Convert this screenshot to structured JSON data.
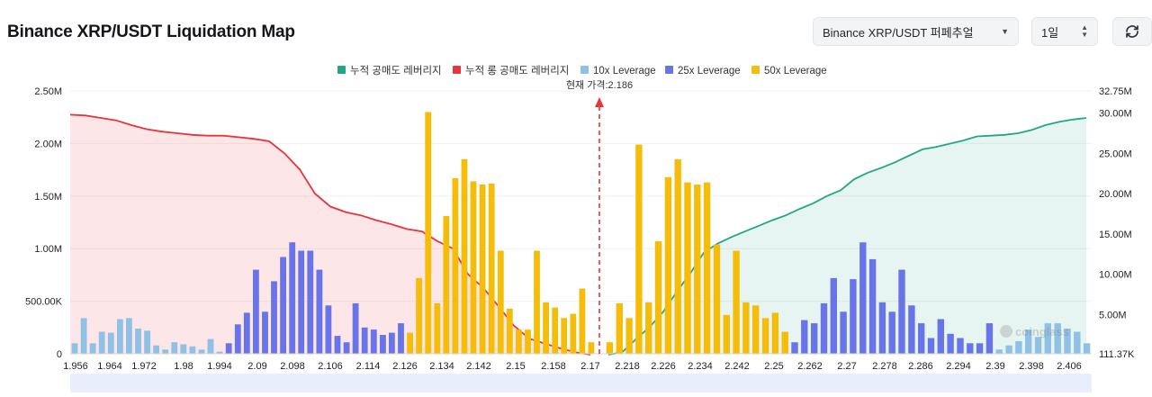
{
  "header": {
    "title": "Binance XRP/USDT Liquidation Map",
    "exchange_select": "Binance XRP/USDT 퍼페추얼",
    "period_select": "1일"
  },
  "colors": {
    "short_cumulative": "#23a686",
    "long_cumulative": "#e8343a",
    "lev10": "#8fc0e6",
    "lev25": "#6874e8",
    "lev50": "#f5bd0a",
    "current_price_line": "#e8343a"
  },
  "chart_data": {
    "type": "bar",
    "legend": [
      {
        "label": "누적 공매도 레버리지",
        "color": "#23a686"
      },
      {
        "label": "누적 롱 공매도 레버리지",
        "color": "#e8343a"
      },
      {
        "label": "10x Leverage",
        "color": "#8fc0e6"
      },
      {
        "label": "25x Leverage",
        "color": "#6874e8"
      },
      {
        "label": "50x Leverage",
        "color": "#f5bd0a"
      }
    ],
    "legend_position": "top-center",
    "current_price_label": "현재 가격:2.186",
    "current_price": 2.186,
    "x_tick_labels": [
      "1.956",
      "1.964",
      "1.972",
      "1.98",
      "1.994",
      "2.09",
      "2.098",
      "2.106",
      "2.114",
      "2.126",
      "2.134",
      "2.142",
      "2.15",
      "2.158",
      "2.17",
      "2.218",
      "2.226",
      "2.234",
      "2.242",
      "2.25",
      "2.262",
      "2.27",
      "2.278",
      "2.286",
      "2.294",
      "2.39",
      "2.398",
      "2.406"
    ],
    "y_left": {
      "ticks": [
        "0",
        "500.00K",
        "1.00M",
        "1.50M",
        "2.00M",
        "2.50M"
      ],
      "max": 2500000
    },
    "y_right": {
      "ticks": [
        "111.37K",
        "5.00M",
        "10.00M",
        "15.00M",
        "20.00M",
        "25.00M",
        "30.00M",
        "32.75M"
      ],
      "min": 111370,
      "max": 32750000
    },
    "bar_series_order": [
      "10x Leverage",
      "25x Leverage",
      "50x Leverage"
    ],
    "bars": [
      [
        0,
        100000
      ],
      [
        0,
        340000
      ],
      [
        0,
        100000
      ],
      [
        0,
        210000
      ],
      [
        0,
        200000
      ],
      [
        0,
        330000
      ],
      [
        0,
        340000
      ],
      [
        0,
        240000
      ],
      [
        0,
        220000
      ],
      [
        0,
        80000
      ],
      [
        0,
        40000
      ],
      [
        0,
        110000
      ],
      [
        0,
        90000
      ],
      [
        0,
        70000
      ],
      [
        0,
        40000
      ],
      [
        0,
        140000
      ],
      [
        0,
        20000
      ],
      [
        1,
        100000
      ],
      [
        1,
        280000
      ],
      [
        1,
        390000
      ],
      [
        1,
        800000
      ],
      [
        1,
        400000
      ],
      [
        1,
        690000
      ],
      [
        1,
        920000
      ],
      [
        1,
        1060000
      ],
      [
        1,
        980000
      ],
      [
        1,
        980000
      ],
      [
        1,
        800000
      ],
      [
        1,
        460000
      ],
      [
        1,
        170000
      ],
      [
        1,
        110000
      ],
      [
        1,
        480000
      ],
      [
        1,
        250000
      ],
      [
        1,
        230000
      ],
      [
        1,
        180000
      ],
      [
        1,
        200000
      ],
      [
        1,
        290000
      ],
      [
        2,
        200000
      ],
      [
        2,
        720000
      ],
      [
        2,
        2300000
      ],
      [
        2,
        480000
      ],
      [
        2,
        1310000
      ],
      [
        2,
        1670000
      ],
      [
        2,
        1850000
      ],
      [
        2,
        1640000
      ],
      [
        2,
        1610000
      ],
      [
        2,
        1620000
      ],
      [
        2,
        980000
      ],
      [
        2,
        430000
      ],
      [
        2,
        230000
      ],
      [
        2,
        230000
      ],
      [
        2,
        980000
      ],
      [
        2,
        490000
      ],
      [
        2,
        440000
      ],
      [
        2,
        340000
      ],
      [
        2,
        380000
      ],
      [
        2,
        620000
      ],
      [
        2,
        110000
      ],
      [
        2,
        110000
      ],
      [
        2,
        480000
      ],
      [
        2,
        340000
      ],
      [
        2,
        1990000
      ],
      [
        2,
        490000
      ],
      [
        2,
        1070000
      ],
      [
        2,
        1680000
      ],
      [
        2,
        1850000
      ],
      [
        2,
        1630000
      ],
      [
        2,
        1610000
      ],
      [
        2,
        1630000
      ],
      [
        2,
        1040000
      ],
      [
        2,
        370000
      ],
      [
        2,
        980000
      ],
      [
        2,
        490000
      ],
      [
        2,
        460000
      ],
      [
        2,
        340000
      ],
      [
        2,
        390000
      ],
      [
        2,
        210000
      ],
      [
        1,
        110000
      ],
      [
        1,
        320000
      ],
      [
        1,
        290000
      ],
      [
        1,
        480000
      ],
      [
        1,
        720000
      ],
      [
        1,
        400000
      ],
      [
        1,
        710000
      ],
      [
        1,
        1060000
      ],
      [
        1,
        900000
      ],
      [
        1,
        490000
      ],
      [
        1,
        400000
      ],
      [
        1,
        800000
      ],
      [
        1,
        460000
      ],
      [
        1,
        290000
      ],
      [
        1,
        150000
      ],
      [
        1,
        330000
      ],
      [
        1,
        190000
      ],
      [
        1,
        150000
      ],
      [
        1,
        100000
      ],
      [
        1,
        100000
      ],
      [
        1,
        290000
      ],
      [
        0,
        40000
      ],
      [
        0,
        80000
      ],
      [
        0,
        120000
      ],
      [
        0,
        230000
      ],
      [
        0,
        160000
      ],
      [
        0,
        290000
      ],
      [
        0,
        290000
      ],
      [
        0,
        240000
      ],
      [
        0,
        210000
      ],
      [
        0,
        100000
      ]
    ],
    "long_cumulative_values": [
      29.8,
      29.7,
      29.4,
      29.1,
      28.5,
      28.0,
      27.7,
      27.5,
      27.3,
      27.2,
      27.2,
      27.0,
      26.8,
      26.5,
      25.0,
      23.0,
      20.0,
      18.4,
      17.7,
      17.3,
      16.7,
      16.2,
      15.6,
      15.3,
      14.1,
      13.2,
      10.0,
      8.3,
      6.0,
      3.6,
      2.0,
      1.4,
      0.8,
      0.3,
      0.0
    ],
    "short_cumulative_values": [
      0.0,
      0.3,
      1.9,
      3.4,
      5.3,
      7.8,
      10.1,
      12.7,
      13.8,
      14.6,
      15.3,
      16.0,
      16.7,
      17.3,
      18.1,
      18.8,
      19.7,
      20.4,
      21.8,
      22.6,
      23.2,
      23.9,
      24.7,
      25.5,
      25.8,
      26.2,
      26.6,
      27.1,
      27.2,
      27.3,
      27.5,
      27.9,
      28.5,
      28.9,
      29.2,
      29.4
    ]
  }
}
